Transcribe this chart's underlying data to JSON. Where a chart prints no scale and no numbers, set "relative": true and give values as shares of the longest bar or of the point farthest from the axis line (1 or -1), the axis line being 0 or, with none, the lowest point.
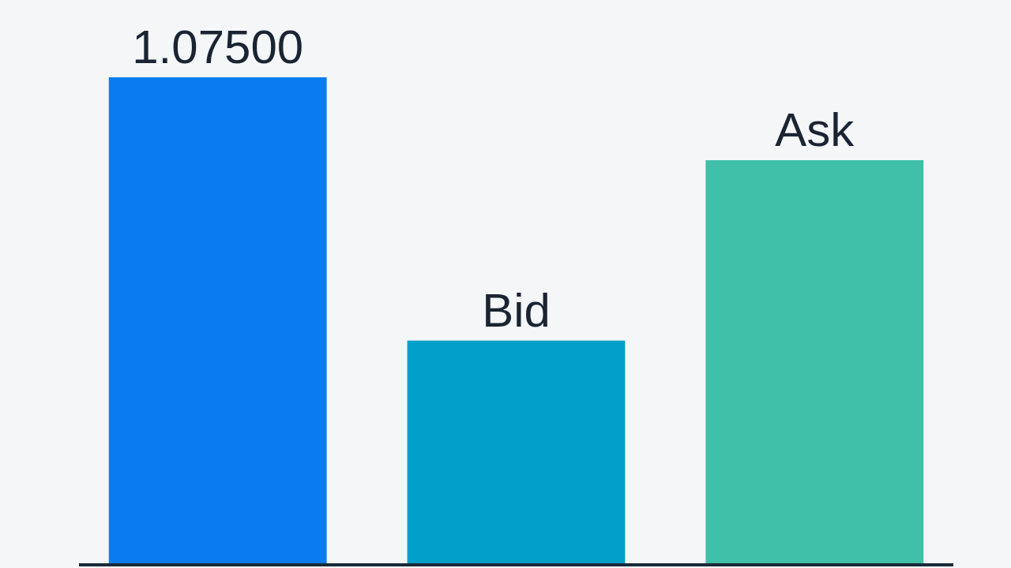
{
  "chart_data": {
    "type": "bar",
    "relative": true,
    "categories": [
      "1.07500",
      "Bid",
      "Ask"
    ],
    "values": [
      1,
      0.46,
      0.83
    ],
    "colors": [
      "#0a7cf0",
      "#00a0c8",
      "#40c0a8"
    ]
  }
}
